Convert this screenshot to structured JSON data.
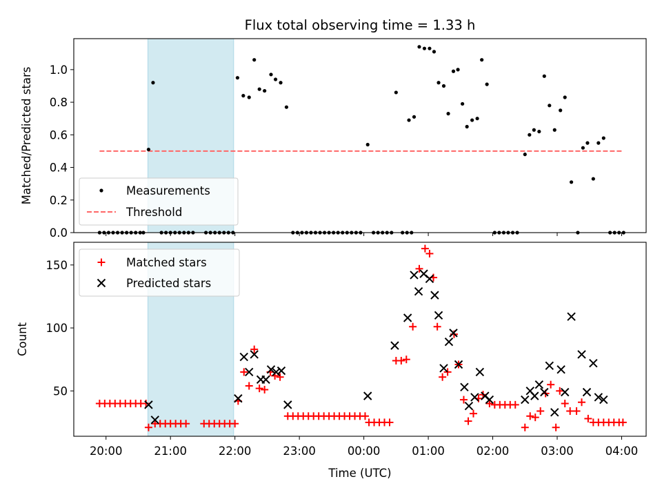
{
  "chart_data": [
    {
      "type": "scatter",
      "title": "Flux total observing time = 1.33 h",
      "xlabel": "",
      "ylabel": "Matched/Predicted stars",
      "ylim": [
        0,
        1.19
      ],
      "yticks": [
        "0.0",
        "0.2",
        "0.4",
        "0.6",
        "0.8",
        "1.0"
      ],
      "yticks_values": [
        0,
        0.2,
        0.4,
        0.6,
        0.8,
        1.0
      ],
      "x_unit": "hours since 20:00 UTC",
      "xlim": [
        -0.5,
        8.38
      ],
      "highlight_span": {
        "x0": 0.65,
        "x1": 1.98,
        "color": "#add8e6"
      },
      "legend": {
        "placement": "lower-left",
        "entries": [
          "Measurements",
          "Threshold"
        ]
      },
      "threshold": {
        "name": "Threshold",
        "y": 0.5,
        "x0": -0.1,
        "x1": 8.0,
        "color": "#ff6666"
      },
      "series": [
        {
          "name": "Measurements",
          "color": "#000000",
          "points": [
            [
              -0.1,
              0
            ],
            [
              -0.03,
              0
            ],
            [
              0.04,
              0
            ],
            [
              0.11,
              0
            ],
            [
              0.18,
              0
            ],
            [
              0.25,
              0
            ],
            [
              0.32,
              0
            ],
            [
              0.39,
              0
            ],
            [
              0.46,
              0
            ],
            [
              0.53,
              0
            ],
            [
              0.58,
              0
            ],
            [
              0.66,
              0.51
            ],
            [
              0.73,
              0.92
            ],
            [
              0.86,
              0
            ],
            [
              0.93,
              0
            ],
            [
              1.0,
              0
            ],
            [
              1.07,
              0
            ],
            [
              1.14,
              0
            ],
            [
              1.21,
              0
            ],
            [
              1.28,
              0
            ],
            [
              1.35,
              0
            ],
            [
              1.55,
              0
            ],
            [
              1.62,
              0
            ],
            [
              1.69,
              0
            ],
            [
              1.76,
              0
            ],
            [
              1.83,
              0
            ],
            [
              1.9,
              0
            ],
            [
              1.97,
              0
            ],
            [
              2.04,
              0.95
            ],
            [
              2.13,
              0.84
            ],
            [
              2.22,
              0.83
            ],
            [
              2.3,
              1.06
            ],
            [
              2.38,
              0.88
            ],
            [
              2.46,
              0.87
            ],
            [
              2.56,
              0.97
            ],
            [
              2.63,
              0.94
            ],
            [
              2.71,
              0.92
            ],
            [
              2.8,
              0.77
            ],
            [
              2.9,
              0
            ],
            [
              2.97,
              0
            ],
            [
              3.04,
              0
            ],
            [
              3.11,
              0
            ],
            [
              3.18,
              0
            ],
            [
              3.25,
              0
            ],
            [
              3.32,
              0
            ],
            [
              3.39,
              0
            ],
            [
              3.46,
              0
            ],
            [
              3.53,
              0
            ],
            [
              3.6,
              0
            ],
            [
              3.67,
              0
            ],
            [
              3.74,
              0
            ],
            [
              3.81,
              0
            ],
            [
              3.88,
              0
            ],
            [
              3.95,
              0
            ],
            [
              4.06,
              0.54
            ],
            [
              4.15,
              0
            ],
            [
              4.22,
              0
            ],
            [
              4.29,
              0
            ],
            [
              4.36,
              0
            ],
            [
              4.43,
              0
            ],
            [
              4.5,
              0.86
            ],
            [
              4.6,
              0
            ],
            [
              4.67,
              0
            ],
            [
              4.74,
              0
            ],
            [
              4.7,
              0.69
            ],
            [
              4.78,
              0.71
            ],
            [
              4.86,
              1.14
            ],
            [
              4.94,
              1.13
            ],
            [
              5.02,
              1.13
            ],
            [
              5.09,
              1.11
            ],
            [
              5.16,
              0.92
            ],
            [
              5.24,
              0.9
            ],
            [
              5.31,
              0.73
            ],
            [
              5.39,
              0.99
            ],
            [
              5.46,
              1.0
            ],
            [
              5.53,
              0.79
            ],
            [
              5.6,
              0.65
            ],
            [
              5.68,
              0.69
            ],
            [
              5.76,
              0.7
            ],
            [
              5.83,
              1.06
            ],
            [
              5.91,
              0.91
            ],
            [
              6.03,
              0
            ],
            [
              6.1,
              0
            ],
            [
              6.17,
              0
            ],
            [
              6.24,
              0
            ],
            [
              6.31,
              0
            ],
            [
              6.38,
              0
            ],
            [
              6.5,
              0.48
            ],
            [
              6.57,
              0.6
            ],
            [
              6.64,
              0.63
            ],
            [
              6.72,
              0.62
            ],
            [
              6.8,
              0.96
            ],
            [
              6.88,
              0.78
            ],
            [
              6.96,
              0.63
            ],
            [
              7.05,
              0.75
            ],
            [
              7.12,
              0.83
            ],
            [
              7.22,
              0.31
            ],
            [
              7.32,
              0
            ],
            [
              7.4,
              0.52
            ],
            [
              7.47,
              0.55
            ],
            [
              7.56,
              0.33
            ],
            [
              7.64,
              0.55
            ],
            [
              7.72,
              0.58
            ],
            [
              7.82,
              0
            ],
            [
              7.89,
              0
            ],
            [
              7.96,
              0
            ],
            [
              8.03,
              0
            ]
          ]
        }
      ]
    },
    {
      "type": "scatter",
      "title": "",
      "xlabel": "Time (UTC)",
      "ylabel": "Count",
      "ylim": [
        14,
        168
      ],
      "yticks": [
        "50",
        "100",
        "150"
      ],
      "yticks_values": [
        50,
        100,
        150
      ],
      "categories": [
        "20:00",
        "21:00",
        "22:00",
        "23:00",
        "00:00",
        "01:00",
        "02:00",
        "03:00",
        "04:00"
      ],
      "x_unit": "hours since 20:00 UTC",
      "xlim": [
        -0.5,
        8.38
      ],
      "highlight_span": {
        "x0": 0.65,
        "x1": 1.98,
        "color": "#add8e6"
      },
      "legend": {
        "placement": "upper-left",
        "entries": [
          "Matched stars",
          "Predicted stars"
        ]
      },
      "series": [
        {
          "name": "Matched stars",
          "marker": "plus",
          "color": "#ff0000",
          "points": [
            [
              -0.1,
              40
            ],
            [
              -0.02,
              40
            ],
            [
              0.06,
              40
            ],
            [
              0.14,
              40
            ],
            [
              0.22,
              40
            ],
            [
              0.3,
              40
            ],
            [
              0.38,
              40
            ],
            [
              0.46,
              40
            ],
            [
              0.54,
              40
            ],
            [
              0.62,
              40
            ],
            [
              0.66,
              21
            ],
            [
              0.76,
              24
            ],
            [
              0.84,
              24
            ],
            [
              0.92,
              24
            ],
            [
              1.0,
              24
            ],
            [
              1.08,
              24
            ],
            [
              1.16,
              24
            ],
            [
              1.24,
              24
            ],
            [
              1.52,
              24
            ],
            [
              1.6,
              24
            ],
            [
              1.68,
              24
            ],
            [
              1.76,
              24
            ],
            [
              1.84,
              24
            ],
            [
              1.92,
              24
            ],
            [
              2.0,
              24
            ],
            [
              2.05,
              42
            ],
            [
              2.14,
              65
            ],
            [
              2.22,
              54
            ],
            [
              2.3,
              83
            ],
            [
              2.38,
              52
            ],
            [
              2.46,
              51
            ],
            [
              2.55,
              65
            ],
            [
              2.62,
              62
            ],
            [
              2.7,
              61
            ],
            [
              2.82,
              30
            ],
            [
              2.9,
              30
            ],
            [
              2.98,
              30
            ],
            [
              3.06,
              30
            ],
            [
              3.14,
              30
            ],
            [
              3.22,
              30
            ],
            [
              3.3,
              30
            ],
            [
              3.38,
              30
            ],
            [
              3.46,
              30
            ],
            [
              3.54,
              30
            ],
            [
              3.62,
              30
            ],
            [
              3.7,
              30
            ],
            [
              3.78,
              30
            ],
            [
              3.86,
              30
            ],
            [
              3.94,
              30
            ],
            [
              4.02,
              30
            ],
            [
              4.08,
              25
            ],
            [
              4.16,
              25
            ],
            [
              4.24,
              25
            ],
            [
              4.32,
              25
            ],
            [
              4.4,
              25
            ],
            [
              4.5,
              74
            ],
            [
              4.58,
              74
            ],
            [
              4.66,
              75
            ],
            [
              4.76,
              101
            ],
            [
              4.86,
              147
            ],
            [
              4.95,
              163
            ],
            [
              5.02,
              159
            ],
            [
              5.08,
              140
            ],
            [
              5.14,
              101
            ],
            [
              5.22,
              61
            ],
            [
              5.3,
              65
            ],
            [
              5.4,
              95
            ],
            [
              5.47,
              71
            ],
            [
              5.55,
              43
            ],
            [
              5.62,
              26
            ],
            [
              5.7,
              32
            ],
            [
              5.78,
              44
            ],
            [
              5.85,
              47
            ],
            [
              5.95,
              40
            ],
            [
              6.03,
              39
            ],
            [
              6.11,
              39
            ],
            [
              6.19,
              39
            ],
            [
              6.27,
              39
            ],
            [
              6.35,
              39
            ],
            [
              6.5,
              21
            ],
            [
              6.58,
              30
            ],
            [
              6.66,
              29
            ],
            [
              6.74,
              34
            ],
            [
              6.82,
              48
            ],
            [
              6.9,
              55
            ],
            [
              6.98,
              21
            ],
            [
              7.04,
              50
            ],
            [
              7.12,
              40
            ],
            [
              7.2,
              34
            ],
            [
              7.3,
              34
            ],
            [
              7.38,
              41
            ],
            [
              7.48,
              28
            ],
            [
              7.56,
              25
            ],
            [
              7.64,
              25
            ],
            [
              7.72,
              25
            ],
            [
              7.8,
              25
            ],
            [
              7.88,
              25
            ],
            [
              7.96,
              25
            ],
            [
              8.02,
              25
            ]
          ]
        },
        {
          "name": "Predicted stars",
          "marker": "x",
          "color": "#000000",
          "points": [
            [
              0.66,
              39
            ],
            [
              0.76,
              27
            ],
            [
              2.05,
              44
            ],
            [
              2.14,
              77
            ],
            [
              2.22,
              65
            ],
            [
              2.3,
              79
            ],
            [
              2.4,
              59
            ],
            [
              2.48,
              59
            ],
            [
              2.56,
              67
            ],
            [
              2.64,
              65
            ],
            [
              2.72,
              66
            ],
            [
              2.82,
              39
            ],
            [
              4.06,
              46
            ],
            [
              4.48,
              86
            ],
            [
              4.68,
              108
            ],
            [
              4.78,
              142
            ],
            [
              4.85,
              129
            ],
            [
              4.93,
              143
            ],
            [
              5.02,
              139
            ],
            [
              5.1,
              126
            ],
            [
              5.16,
              110
            ],
            [
              5.24,
              68
            ],
            [
              5.32,
              89
            ],
            [
              5.39,
              96
            ],
            [
              5.47,
              71
            ],
            [
              5.56,
              53
            ],
            [
              5.63,
              38
            ],
            [
              5.72,
              45
            ],
            [
              5.8,
              65
            ],
            [
              5.88,
              46
            ],
            [
              5.95,
              43
            ],
            [
              6.5,
              43
            ],
            [
              6.58,
              50
            ],
            [
              6.65,
              46
            ],
            [
              6.72,
              55
            ],
            [
              6.8,
              49
            ],
            [
              6.88,
              70
            ],
            [
              6.96,
              33
            ],
            [
              7.06,
              67
            ],
            [
              7.12,
              49
            ],
            [
              7.22,
              109
            ],
            [
              7.38,
              79
            ],
            [
              7.46,
              49
            ],
            [
              7.56,
              72
            ],
            [
              7.64,
              45
            ],
            [
              7.72,
              43
            ]
          ]
        }
      ]
    }
  ]
}
